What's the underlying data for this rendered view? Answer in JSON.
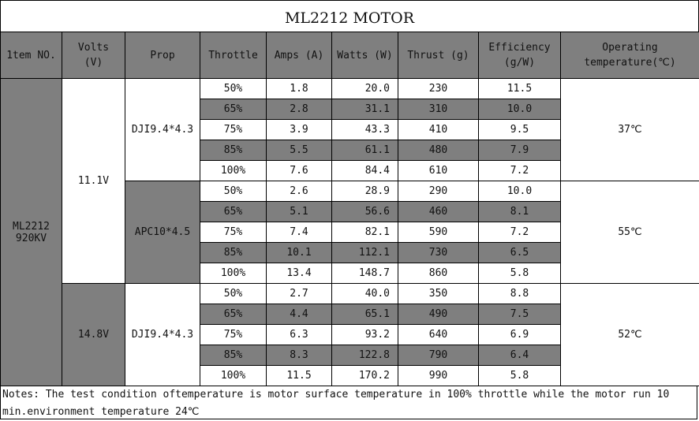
{
  "title": "ML2212 MOTOR",
  "headers": {
    "item_no": "1tem NO.",
    "volts_line1": "Volts",
    "volts_line2": "(V)",
    "prop": "Prop",
    "throttle": "Throttle",
    "amps": "Amps  (A)",
    "watts": "Watts (W)",
    "thrust": "Thrust  (g)",
    "efficiency_line1": "Efficiency",
    "efficiency_line2": "(g/W)",
    "temp_line1": "Operating",
    "temp_line2": "temperature(℃)"
  },
  "item": {
    "line1": "ML2212",
    "line2": "920KV"
  },
  "volts": [
    "11.1V",
    "14.8V"
  ],
  "props": [
    "DJI9.4*4.3",
    "APC10*4.5",
    "DJI9.4*4.3"
  ],
  "temperatures": [
    "37℃",
    "55℃",
    "52℃"
  ],
  "rows": [
    {
      "throttle": "50%",
      "amps": "1.8",
      "watts": "20.0",
      "thrust": "230",
      "efficiency": "11.5"
    },
    {
      "throttle": "65%",
      "amps": "2.8",
      "watts": "31.1",
      "thrust": "310",
      "efficiency": "10.0"
    },
    {
      "throttle": "75%",
      "amps": "3.9",
      "watts": "43.3",
      "thrust": "410",
      "efficiency": "9.5"
    },
    {
      "throttle": "85%",
      "amps": "5.5",
      "watts": "61.1",
      "thrust": "480",
      "efficiency": "7.9"
    },
    {
      "throttle": "100%",
      "amps": "7.6",
      "watts": "84.4",
      "thrust": "610",
      "efficiency": "7.2"
    },
    {
      "throttle": "50%",
      "amps": "2.6",
      "watts": "28.9",
      "thrust": "290",
      "efficiency": "10.0"
    },
    {
      "throttle": "65%",
      "amps": "5.1",
      "watts": "56.6",
      "thrust": "460",
      "efficiency": "8.1"
    },
    {
      "throttle": "75%",
      "amps": "7.4",
      "watts": "82.1",
      "thrust": "590",
      "efficiency": "7.2"
    },
    {
      "throttle": "85%",
      "amps": "10.1",
      "watts": "112.1",
      "thrust": "730",
      "efficiency": "6.5"
    },
    {
      "throttle": "100%",
      "amps": "13.4",
      "watts": "148.7",
      "thrust": "860",
      "efficiency": "5.8"
    },
    {
      "throttle": "50%",
      "amps": "2.7",
      "watts": "40.0",
      "thrust": "350",
      "efficiency": "8.8"
    },
    {
      "throttle": "65%",
      "amps": "4.4",
      "watts": "65.1",
      "thrust": "490",
      "efficiency": "7.5"
    },
    {
      "throttle": "75%",
      "amps": "6.3",
      "watts": "93.2",
      "thrust": "640",
      "efficiency": "6.9"
    },
    {
      "throttle": "85%",
      "amps": "8.3",
      "watts": "122.8",
      "thrust": "790",
      "efficiency": "6.4"
    },
    {
      "throttle": "100%",
      "amps": "11.5",
      "watts": "170.2",
      "thrust": "990",
      "efficiency": "5.8"
    }
  ],
  "notes": "Notes: The test condition oftemperature is motor surface temperature in 100% throttle while the motor run 10 min.environment temperature 24℃"
}
